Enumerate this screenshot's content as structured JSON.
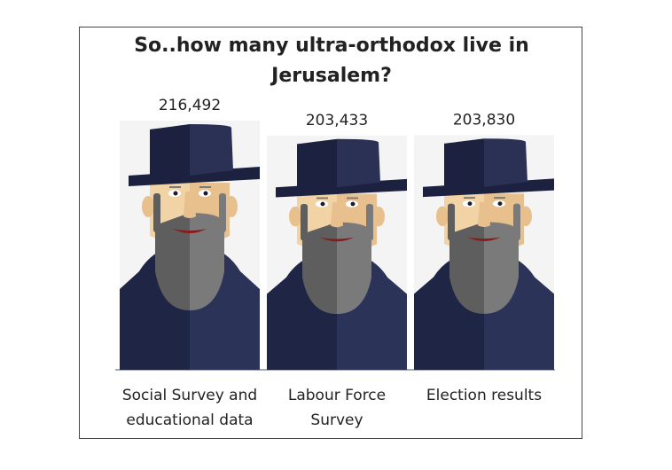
{
  "chart_data": {
    "type": "bar",
    "title": "So..how many ultra-orthodox live in Jerusalem?",
    "title_lines": [
      "So..how many ultra-orthodox live in",
      "Jerusalem?"
    ],
    "categories": [
      "Social Survey and educational data",
      "Labour Force Survey",
      "Election results"
    ],
    "category_lines": [
      [
        "Social Survey and",
        "educational data"
      ],
      [
        "Labour Force",
        "Survey"
      ],
      [
        "Election results"
      ]
    ],
    "values": [
      216492,
      203433,
      203830
    ],
    "value_labels": [
      "216,492",
      "203,433",
      "203,830"
    ],
    "xlabel": "",
    "ylabel": "",
    "grid": false,
    "legend": "none",
    "colors": {
      "hat": "#2b3154",
      "hat_shade": "#1c2140",
      "coat": "#2c3358",
      "coat_shade": "#1f2545",
      "beard": "#7a7a7a",
      "beard_shade": "#5e5e5e",
      "skin": "#f2d3a5",
      "skin_shade": "#e8c08e",
      "mouth": "#8b1a1a",
      "background_panel": "#f4f4f4"
    }
  }
}
